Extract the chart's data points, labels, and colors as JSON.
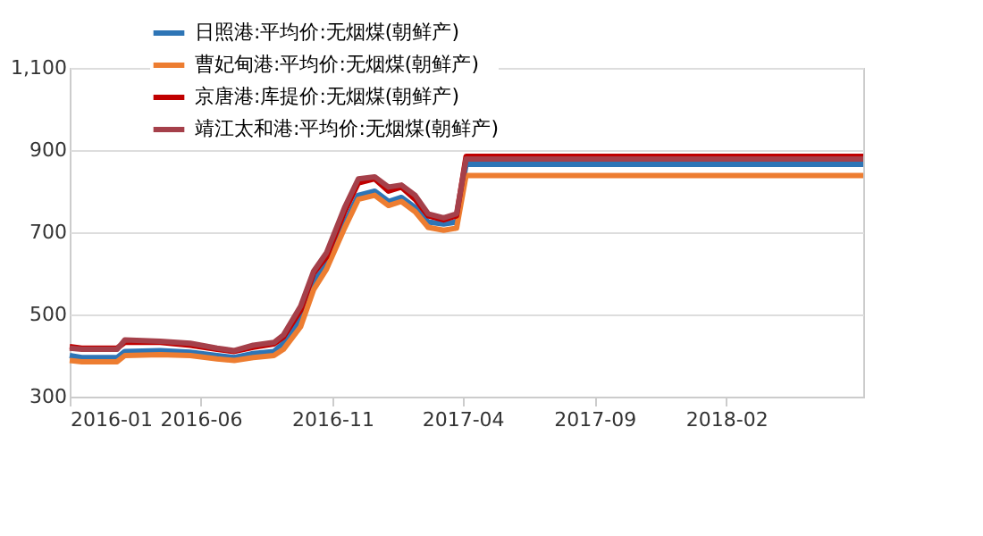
{
  "chart_data": {
    "type": "line",
    "x": [
      "2016-01-01",
      "2016-01-15",
      "2016-02-25",
      "2016-03-05",
      "2016-04-15",
      "2016-05-20",
      "2016-06-20",
      "2016-07-10",
      "2016-08-01",
      "2016-08-25",
      "2016-09-05",
      "2016-09-25",
      "2016-10-10",
      "2016-10-25",
      "2016-11-15",
      "2016-12-01",
      "2016-12-20",
      "2017-01-05",
      "2017-01-20",
      "2017-02-05",
      "2017-02-20",
      "2017-03-10",
      "2017-03-25",
      "2017-04-05",
      "2018-07-10"
    ],
    "series": [
      {
        "name": "日照港:平均价:无烟煤(朝鲜产)",
        "color": "#2e75b6",
        "values": [
          400,
          395,
          395,
          410,
          412,
          408,
          400,
          395,
          405,
          410,
          430,
          490,
          580,
          620,
          720,
          790,
          800,
          775,
          785,
          760,
          725,
          720,
          725,
          865,
          865
        ]
      },
      {
        "name": "曹妃甸港:平均价:无烟煤(朝鲜产)",
        "color": "#ed7d31",
        "values": [
          388,
          385,
          385,
          400,
          402,
          400,
          392,
          388,
          395,
          400,
          415,
          470,
          560,
          610,
          710,
          780,
          790,
          765,
          775,
          750,
          712,
          705,
          710,
          838,
          838
        ]
      },
      {
        "name": "京唐港:库提价:无烟煤(朝鲜产)",
        "color": "#c00000",
        "values": [
          422,
          418,
          418,
          432,
          432,
          425,
          415,
          410,
          420,
          428,
          445,
          510,
          600,
          640,
          750,
          820,
          830,
          800,
          810,
          780,
          740,
          730,
          740,
          885,
          885
        ]
      },
      {
        "name": "靖江太和港:平均价:无烟煤(朝鲜产)",
        "color": "#a5404a",
        "values": [
          418,
          415,
          415,
          438,
          435,
          430,
          418,
          412,
          425,
          432,
          450,
          520,
          605,
          650,
          760,
          830,
          835,
          810,
          815,
          790,
          745,
          735,
          745,
          878,
          878
        ]
      }
    ],
    "xlim": [
      "2016-01-01",
      "2018-07-10"
    ],
    "xticks": [
      "2016-01",
      "2016-06",
      "2016-11",
      "2017-04",
      "2017-09",
      "2018-02"
    ],
    "ylim": [
      300,
      1100
    ],
    "yticks": [
      300,
      500,
      700,
      900,
      {
        "value": 1100,
        "label": "1,100"
      }
    ],
    "grid": "y",
    "legend": "top left",
    "marker": "none",
    "line_style": "solid"
  }
}
